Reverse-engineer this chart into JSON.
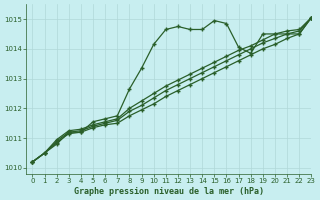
{
  "title": "Graphe pression niveau de la mer (hPa)",
  "bg_color": "#c8eef0",
  "grid_color": "#b0d8d8",
  "line_color": "#2a5f2a",
  "xlim": [
    -0.5,
    23
  ],
  "ylim": [
    1009.8,
    1015.5
  ],
  "yticks": [
    1010,
    1011,
    1012,
    1013,
    1014,
    1015
  ],
  "xticks": [
    0,
    1,
    2,
    3,
    4,
    5,
    6,
    7,
    8,
    9,
    10,
    11,
    12,
    13,
    14,
    15,
    16,
    17,
    18,
    19,
    20,
    21,
    22,
    23
  ],
  "series": [
    [
      1010.2,
      1010.5,
      1010.8,
      1011.2,
      1011.2,
      1011.55,
      1011.65,
      1011.75,
      1012.65,
      1013.35,
      1014.15,
      1014.65,
      1014.75,
      1014.65,
      1014.65,
      1014.95,
      1014.85,
      1014.05,
      1013.85,
      1014.5,
      1014.5,
      1014.5,
      1014.5,
      1015.05
    ],
    [
      1010.2,
      1010.5,
      1010.85,
      1011.15,
      1011.2,
      1011.35,
      1011.45,
      1011.5,
      1011.75,
      1011.95,
      1012.15,
      1012.4,
      1012.6,
      1012.8,
      1013.0,
      1013.2,
      1013.4,
      1013.6,
      1013.8,
      1014.0,
      1014.15,
      1014.35,
      1014.5,
      1015.05
    ],
    [
      1010.2,
      1010.5,
      1010.9,
      1011.2,
      1011.25,
      1011.4,
      1011.5,
      1011.6,
      1011.9,
      1012.1,
      1012.35,
      1012.6,
      1012.8,
      1013.0,
      1013.2,
      1013.4,
      1013.6,
      1013.8,
      1014.0,
      1014.2,
      1014.35,
      1014.5,
      1014.6,
      1015.05
    ],
    [
      1010.2,
      1010.5,
      1010.95,
      1011.25,
      1011.3,
      1011.45,
      1011.55,
      1011.65,
      1012.0,
      1012.25,
      1012.5,
      1012.75,
      1012.95,
      1013.15,
      1013.35,
      1013.55,
      1013.75,
      1013.95,
      1014.1,
      1014.3,
      1014.5,
      1014.6,
      1014.65,
      1015.05
    ]
  ]
}
